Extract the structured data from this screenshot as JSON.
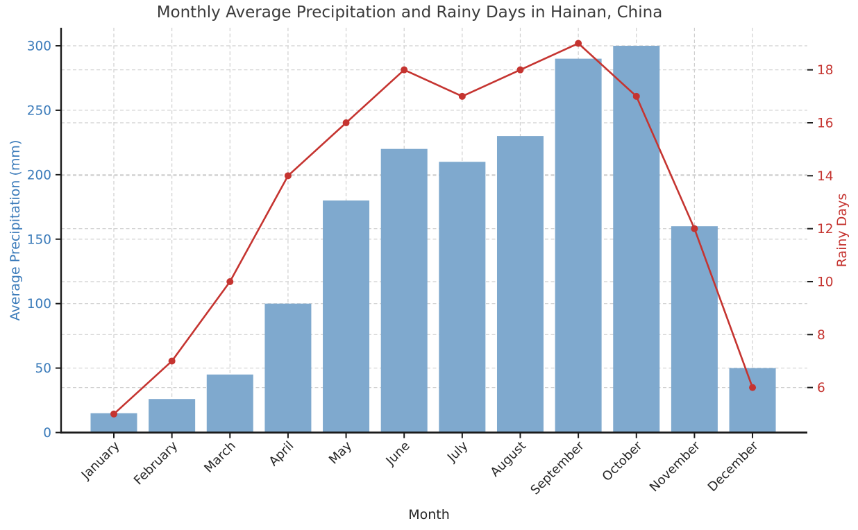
{
  "chart_data": {
    "type": "bar+line (dual y-axis)",
    "title": "Monthly Average Precipitation and Rainy Days in Hainan, China",
    "xlabel": "Month",
    "ylabel_left": "Average Precipitation (mm)",
    "ylabel_right": "Rainy Days",
    "categories": [
      "January",
      "February",
      "March",
      "April",
      "May",
      "June",
      "July",
      "August",
      "September",
      "October",
      "November",
      "December"
    ],
    "series": [
      {
        "name": "Average Precipitation (mm)",
        "type": "bar",
        "axis": "left",
        "color": "#7FA9CE",
        "values": [
          15,
          26,
          45,
          100,
          180,
          220,
          210,
          230,
          290,
          300,
          160,
          50
        ]
      },
      {
        "name": "Rainy Days",
        "type": "line",
        "axis": "right",
        "color": "#C53430",
        "values": [
          5,
          7,
          10,
          14,
          16,
          18,
          17,
          18,
          19,
          17,
          12,
          6
        ]
      }
    ],
    "left_axis": {
      "ticks": [
        0,
        50,
        100,
        150,
        200,
        250,
        300
      ],
      "lim": [
        0,
        314
      ],
      "label_color": "#3B7BBA"
    },
    "right_axis": {
      "ticks": [
        6,
        8,
        10,
        12,
        14,
        16,
        18
      ],
      "lim": [
        4.3,
        19.59
      ],
      "label_color": "#C53430"
    },
    "grid": true,
    "legend": "none",
    "styles": {
      "background": "#FFFFFF",
      "grid_color": "#CFCFCF",
      "spine_color": "#1A1A1A",
      "title_color": "#3B3B3B",
      "xtick_color": "#262626",
      "bar_color": "#7FA9CE",
      "line_color": "#C53430"
    }
  }
}
